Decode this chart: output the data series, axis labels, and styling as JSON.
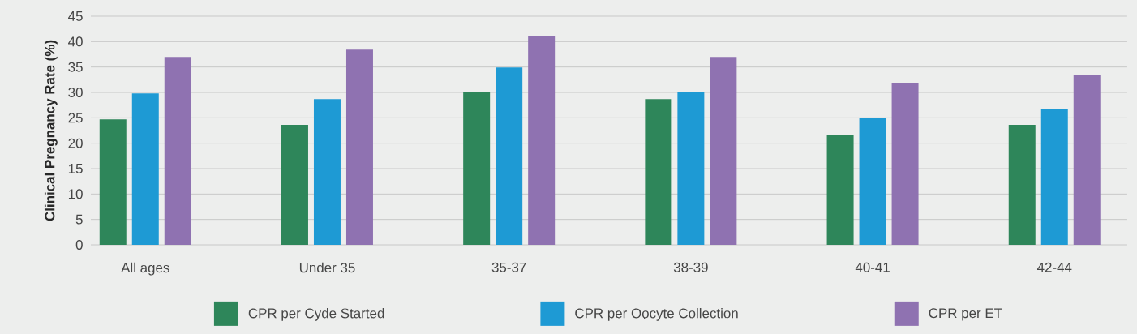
{
  "chart_data": {
    "type": "bar",
    "ylabel": "Clinical Pregnancy Rate (%)",
    "categories": [
      "All ages",
      "Under 35",
      "35-37",
      "38-39",
      "40-41",
      "42-44"
    ],
    "series": [
      {
        "name": "CPR per Cyde Started",
        "color": "#2e865a",
        "values": [
          24.7,
          23.6,
          30.0,
          28.7,
          21.6,
          23.6
        ]
      },
      {
        "name": "CPR per Oocyte Collection",
        "color": "#1e9ad4",
        "values": [
          29.8,
          28.7,
          34.9,
          30.1,
          25.0,
          26.8
        ]
      },
      {
        "name": "CPR per ET",
        "color": "#8f72b1",
        "values": [
          37.0,
          38.4,
          41.0,
          37.0,
          31.9,
          33.4
        ]
      }
    ],
    "ylim": [
      0,
      45
    ],
    "yticks": [
      0,
      5,
      10,
      15,
      20,
      25,
      30,
      35,
      40,
      45
    ],
    "grid": "y",
    "legend": "bottom"
  }
}
